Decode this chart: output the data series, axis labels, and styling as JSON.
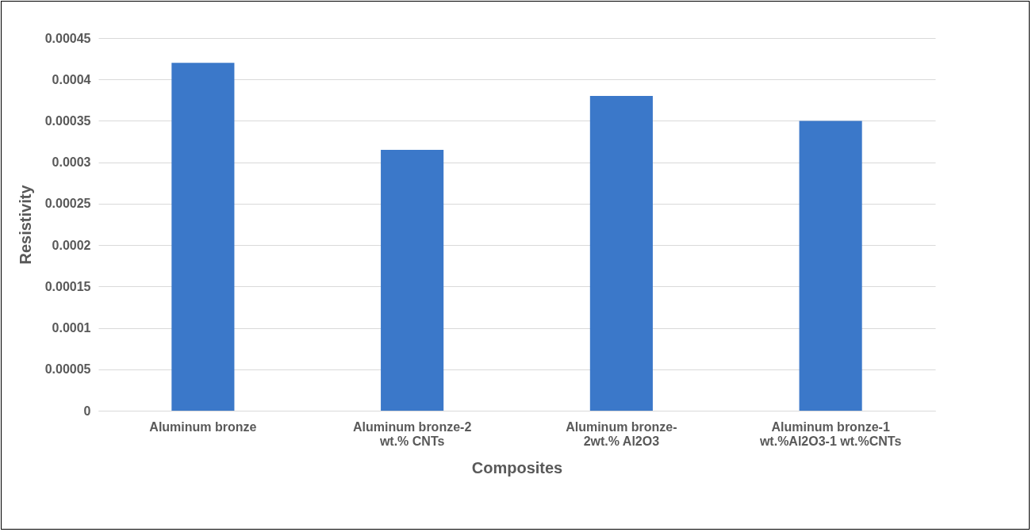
{
  "chart_data": {
    "type": "bar",
    "categories": [
      "Aluminum bronze",
      "Aluminum bronze-2 wt.% CNTs",
      "Aluminum bronze-2wt.% Al2O3",
      "Aluminum bronze-1 wt.%Al2O3-1 wt.%CNTs"
    ],
    "values": [
      0.00042,
      0.000315,
      0.00038,
      0.00035
    ],
    "color": "#3b78c9",
    "xlabel": "Composites",
    "ylabel": "Resistivity",
    "ylim": [
      0,
      0.00045
    ],
    "yticks": [
      0,
      {
        "value": 5e-05,
        "label": "0.00005"
      },
      0.0001,
      0.00015,
      0.0002,
      0.00025,
      0.0003,
      0.00035,
      0.0004,
      0.00045
    ],
    "grid": true
  }
}
